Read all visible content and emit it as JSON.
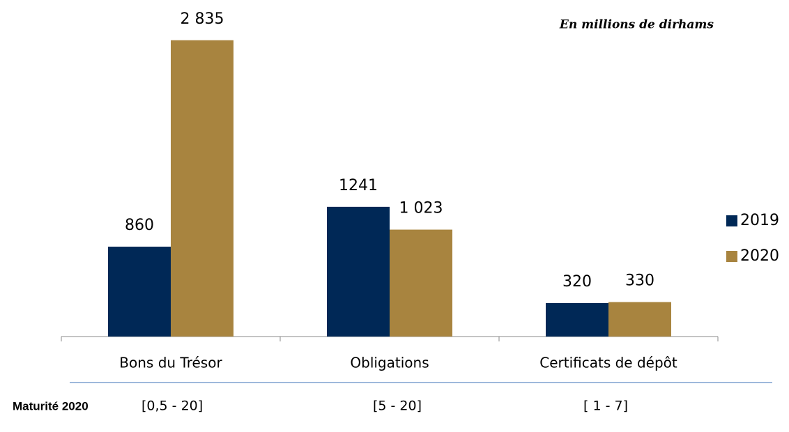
{
  "chart_data": {
    "type": "bar",
    "annotation": "En millions de dirhams",
    "categories": [
      "Bons du Trésor",
      "Obligations",
      "Certificats de dépôt"
    ],
    "series": [
      {
        "name": "2019",
        "color": "#002856",
        "values": [
          860,
          1241,
          320
        ]
      },
      {
        "name": "2020",
        "color": "#a8843f",
        "values": [
          2835,
          1023,
          330
        ],
        "value_labels": [
          "2 835",
          "1 023",
          "330"
        ]
      }
    ],
    "ylim": [
      0,
      3000
    ],
    "legend": "right",
    "maturity": {
      "label": "Maturité 2020",
      "values": [
        "[0,5 - 20]",
        "[5 - 20]",
        "[ 1 - 7]"
      ]
    }
  }
}
